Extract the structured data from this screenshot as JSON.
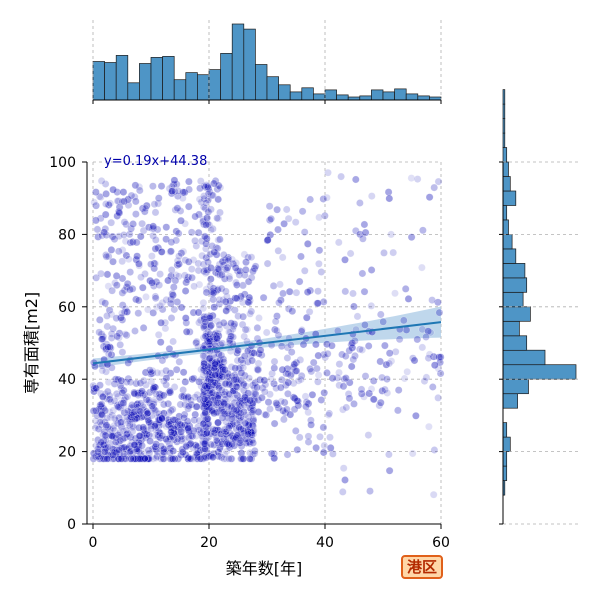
{
  "colors": {
    "scatter": "#0000b3",
    "hist_fill": "#4e95c6",
    "hist_edge": "#1a1a1a",
    "regression_line": "#1f77b4",
    "confidence_band": "#a9c9e6",
    "equation_text": "#0000aa",
    "grid": "#b0b0b0",
    "badge_border": "#e0601a",
    "badge_fill": "#ffd7a8",
    "badge_text": "#b32a00"
  },
  "badge": {
    "label": "港区"
  },
  "chart_data": {
    "type": "scatter",
    "joint_plot": true,
    "xlabel": "築年数[年]",
    "ylabel": "専有面積[m2]",
    "xlim": [
      0,
      60
    ],
    "ylim": [
      0,
      100
    ],
    "xticks": [
      0,
      20,
      40,
      60
    ],
    "yticks": [
      0,
      20,
      40,
      60,
      80,
      100
    ],
    "grid": true,
    "regression": {
      "equation": "y=0.19x+44.38",
      "slope": 0.19,
      "intercept": 44.38
    },
    "marginal_x_hist": {
      "bin_width": 2,
      "bins_start": 0,
      "counts": [
        38,
        37,
        44,
        17,
        36,
        42,
        43,
        20,
        27,
        25,
        30,
        46,
        75,
        70,
        35,
        23,
        15,
        8,
        12,
        6,
        10,
        5,
        3,
        4,
        10,
        8,
        11,
        6,
        4,
        3,
        3,
        4,
        2
      ]
    },
    "marginal_y_hist": {
      "bin_width": 4,
      "bins_start": 8,
      "counts": [
        1,
        2,
        2,
        4,
        2,
        0,
        8,
        14,
        40,
        23,
        13,
        9,
        15,
        11,
        13,
        12,
        7,
        5,
        3,
        2,
        7,
        4,
        3,
        2,
        1,
        1,
        1,
        1
      ]
    },
    "point_clusters": [
      {
        "x_range": [
          0,
          20
        ],
        "y_range": [
          18,
          95
        ],
        "count": 850,
        "y_mode": 25
      },
      {
        "x_range": [
          19,
          22
        ],
        "y_range": [
          18,
          95
        ],
        "count": 320,
        "y_mode": 40
      },
      {
        "x_range": [
          22,
          28
        ],
        "y_range": [
          18,
          75
        ],
        "count": 330,
        "y_mode": 30
      },
      {
        "x_range": [
          28,
          40
        ],
        "y_range": [
          18,
          90
        ],
        "count": 170,
        "y_mode": 40
      },
      {
        "x_range": [
          40,
          60
        ],
        "y_range": [
          8,
          98
        ],
        "count": 150,
        "y_mode": 45
      }
    ]
  }
}
